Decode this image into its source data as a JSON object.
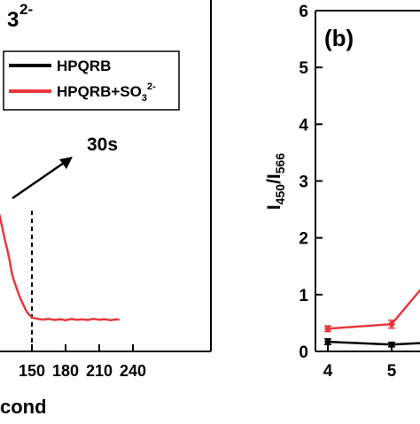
{
  "chart_data": [
    {
      "type": "line",
      "panel": "left",
      "title_fragment": "3",
      "title_sup": "2-",
      "xlabel_fragment": "cond",
      "ylabel": "",
      "xlim": [
        120,
        240
      ],
      "x_ticks": [
        "150",
        "180",
        "210",
        "240"
      ],
      "legend_position": "top-right",
      "series": [
        {
          "name": "HPQRB",
          "color": "#000000",
          "x": [],
          "values": []
        },
        {
          "name_main": "HPQRB+SO",
          "name_sub": "3",
          "name_sup": "2-",
          "color": "#e8383d",
          "x": [
            120,
            122,
            124,
            126,
            128,
            130,
            132,
            134,
            136,
            138,
            140,
            142,
            144,
            146,
            148,
            150,
            155,
            160,
            165,
            170,
            175,
            180,
            185,
            190,
            195,
            200,
            205,
            210,
            215,
            220,
            225,
            228
          ],
          "values": [
            8.75,
            8.2,
            7.55,
            6.9,
            6.35,
            5.7,
            4.9,
            4.4,
            4.0,
            3.6,
            3.25,
            2.95,
            2.65,
            2.4,
            2.25,
            2.1,
            2.02,
            1.97,
            2.02,
            1.95,
            2.0,
            1.94,
            2.01,
            1.96,
            1.99,
            1.95,
            2.02,
            1.96,
            2.0,
            1.94,
            1.99,
            1.97
          ]
        }
      ],
      "annotations": {
        "arrow_label": "30s",
        "dashed_line_x": 150
      }
    },
    {
      "type": "line",
      "panel": "right",
      "panel_label": "(b)",
      "ylabel_main": "I",
      "ylabel_sub1": "450",
      "ylabel_mid": "/I",
      "ylabel_sub2": "566",
      "ylim": [
        0,
        6
      ],
      "y_ticks": [
        "0",
        "1",
        "2",
        "3",
        "4",
        "5",
        "6"
      ],
      "x_ticks": [
        "4",
        "5"
      ],
      "series": [
        {
          "color": "#000000",
          "x": [
            4,
            5,
            5.5
          ],
          "values": [
            0.17,
            0.12,
            0.15
          ],
          "errors": [
            0.05,
            0.04,
            0.04
          ]
        },
        {
          "color": "#e8383d",
          "x": [
            4,
            5,
            5.5
          ],
          "values": [
            0.4,
            0.48,
            1.15
          ],
          "errors": [
            0.05,
            0.07,
            0.08
          ]
        }
      ]
    }
  ]
}
